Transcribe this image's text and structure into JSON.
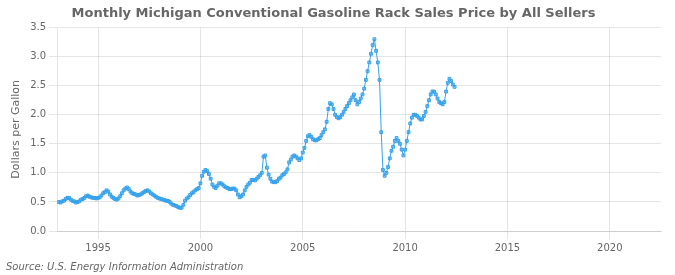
{
  "chart_data": {
    "type": "line",
    "title": "Monthly Michigan Conventional Gasoline Rack Sales Price by All Sellers",
    "y_label": "Dollars per Gallon",
    "annotations": [
      "Source: U.S. Energy Information Administration"
    ],
    "marker": "square",
    "grid": true,
    "xlim": [
      1993.0,
      2022.5
    ],
    "xticks": [
      1995,
      2000,
      2005,
      2010,
      2015,
      2020
    ],
    "ylim": [
      0.0,
      3.5
    ],
    "yticks": [
      {
        "value": 0.0,
        "label": "0.0"
      },
      0.5,
      {
        "value": 1.0,
        "label": "1.0"
      },
      1.5,
      {
        "value": 2.0,
        "label": "2.0"
      },
      2.5,
      {
        "value": 3.0,
        "label": "3.0"
      },
      3.5
    ],
    "x": [
      1993.083,
      1993.167,
      1993.25,
      1993.333,
      1993.417,
      1993.5,
      1993.583,
      1993.667,
      1993.75,
      1993.833,
      1993.917,
      1994.0,
      1994.083,
      1994.167,
      1994.25,
      1994.333,
      1994.417,
      1994.5,
      1994.583,
      1994.667,
      1994.75,
      1994.833,
      1994.917,
      1995.0,
      1995.083,
      1995.167,
      1995.25,
      1995.333,
      1995.417,
      1995.5,
      1995.583,
      1995.667,
      1995.75,
      1995.833,
      1995.917,
      1996.0,
      1996.083,
      1996.167,
      1996.25,
      1996.333,
      1996.417,
      1996.5,
      1996.583,
      1996.667,
      1996.75,
      1996.833,
      1996.917,
      1997.0,
      1997.083,
      1997.167,
      1997.25,
      1997.333,
      1997.417,
      1997.5,
      1997.583,
      1997.667,
      1997.75,
      1997.833,
      1997.917,
      1998.0,
      1998.083,
      1998.167,
      1998.25,
      1998.333,
      1998.417,
      1998.5,
      1998.583,
      1998.667,
      1998.75,
      1998.833,
      1998.917,
      1999.0,
      1999.083,
      1999.167,
      1999.25,
      1999.333,
      1999.417,
      1999.5,
      1999.583,
      1999.667,
      1999.75,
      1999.833,
      1999.917,
      2000.0,
      2000.083,
      2000.167,
      2000.25,
      2000.333,
      2000.417,
      2000.5,
      2000.583,
      2000.667,
      2000.75,
      2000.833,
      2000.917,
      2001.0,
      2001.083,
      2001.167,
      2001.25,
      2001.333,
      2001.417,
      2001.5,
      2001.583,
      2001.667,
      2001.75,
      2001.833,
      2001.917,
      2002.0,
      2002.083,
      2002.167,
      2002.25,
      2002.333,
      2002.417,
      2002.5,
      2002.583,
      2002.667,
      2002.75,
      2002.833,
      2002.917,
      2003.0,
      2003.083,
      2003.167,
      2003.25,
      2003.333,
      2003.417,
      2003.5,
      2003.583,
      2003.667,
      2003.75,
      2003.833,
      2003.917,
      2004.0,
      2004.083,
      2004.167,
      2004.25,
      2004.333,
      2004.417,
      2004.5,
      2004.583,
      2004.667,
      2004.75,
      2004.833,
      2004.917,
      2005.0,
      2005.083,
      2005.167,
      2005.25,
      2005.333,
      2005.417,
      2005.5,
      2005.583,
      2005.667,
      2005.75,
      2005.833,
      2005.917,
      2006.0,
      2006.083,
      2006.167,
      2006.25,
      2006.333,
      2006.417,
      2006.5,
      2006.583,
      2006.667,
      2006.75,
      2006.833,
      2006.917,
      2007.0,
      2007.083,
      2007.167,
      2007.25,
      2007.333,
      2007.417,
      2007.5,
      2007.583,
      2007.667,
      2007.75,
      2007.833,
      2007.917,
      2008.0,
      2008.083,
      2008.167,
      2008.25,
      2008.333,
      2008.417,
      2008.5,
      2008.583,
      2008.667,
      2008.75,
      2008.833,
      2008.917,
      2009.0,
      2009.083,
      2009.167,
      2009.25,
      2009.333,
      2009.417,
      2009.5,
      2009.583,
      2009.667,
      2009.75,
      2009.833,
      2009.917,
      2010.0,
      2010.083,
      2010.167,
      2010.25,
      2010.333,
      2010.417,
      2010.5,
      2010.583,
      2010.667,
      2010.75,
      2010.833,
      2010.917,
      2011.0,
      2011.083,
      2011.167,
      2011.25,
      2011.333,
      2011.417,
      2011.5,
      2011.583,
      2011.667,
      2011.75,
      2011.833,
      2011.917,
      2012.0,
      2012.083,
      2012.167,
      2012.25,
      2012.333,
      2012.417
    ],
    "values": [
      0.5,
      0.49,
      0.51,
      0.52,
      0.55,
      0.57,
      0.57,
      0.54,
      0.52,
      0.51,
      0.49,
      0.5,
      0.51,
      0.54,
      0.55,
      0.57,
      0.6,
      0.61,
      0.59,
      0.58,
      0.57,
      0.57,
      0.56,
      0.57,
      0.58,
      0.61,
      0.65,
      0.67,
      0.7,
      0.68,
      0.63,
      0.59,
      0.57,
      0.55,
      0.54,
      0.56,
      0.6,
      0.65,
      0.7,
      0.73,
      0.75,
      0.72,
      0.68,
      0.65,
      0.64,
      0.63,
      0.61,
      0.62,
      0.63,
      0.65,
      0.67,
      0.69,
      0.7,
      0.68,
      0.65,
      0.63,
      0.61,
      0.59,
      0.57,
      0.56,
      0.55,
      0.54,
      0.53,
      0.52,
      0.52,
      0.5,
      0.47,
      0.45,
      0.44,
      0.43,
      0.41,
      0.4,
      0.4,
      0.45,
      0.52,
      0.56,
      0.58,
      0.62,
      0.65,
      0.67,
      0.7,
      0.72,
      0.74,
      0.82,
      0.95,
      1.02,
      1.05,
      1.03,
      0.98,
      0.9,
      0.8,
      0.76,
      0.74,
      0.78,
      0.82,
      0.82,
      0.8,
      0.77,
      0.75,
      0.74,
      0.72,
      0.72,
      0.73,
      0.73,
      0.7,
      0.63,
      0.58,
      0.6,
      0.63,
      0.7,
      0.76,
      0.8,
      0.83,
      0.88,
      0.88,
      0.87,
      0.9,
      0.93,
      0.96,
      1.0,
      1.28,
      1.3,
      1.09,
      0.97,
      0.9,
      0.85,
      0.84,
      0.84,
      0.86,
      0.9,
      0.92,
      0.96,
      0.98,
      1.01,
      1.06,
      1.18,
      1.23,
      1.28,
      1.3,
      1.28,
      1.25,
      1.22,
      1.25,
      1.35,
      1.43,
      1.55,
      1.63,
      1.65,
      1.62,
      1.58,
      1.56,
      1.56,
      1.58,
      1.6,
      1.65,
      1.7,
      1.75,
      1.88,
      2.1,
      2.2,
      2.18,
      2.1,
      2.0,
      1.96,
      1.94,
      1.96,
      2.0,
      2.05,
      2.1,
      2.15,
      2.2,
      2.25,
      2.3,
      2.35,
      2.25,
      2.18,
      2.22,
      2.28,
      2.35,
      2.45,
      2.6,
      2.75,
      2.9,
      3.05,
      3.2,
      3.3,
      3.1,
      2.9,
      2.6,
      1.7,
      1.05,
      0.95,
      1.0,
      1.1,
      1.25,
      1.38,
      1.45,
      1.55,
      1.6,
      1.55,
      1.5,
      1.4,
      1.3,
      1.4,
      1.55,
      1.7,
      1.85,
      1.95,
      2.0,
      2.0,
      1.98,
      1.95,
      1.92,
      1.92,
      1.98,
      2.05,
      2.15,
      2.25,
      2.35,
      2.4,
      2.4,
      2.35,
      2.28,
      2.22,
      2.2,
      2.18,
      2.22,
      2.4,
      2.55,
      2.62,
      2.58,
      2.52,
      2.48
    ]
  }
}
